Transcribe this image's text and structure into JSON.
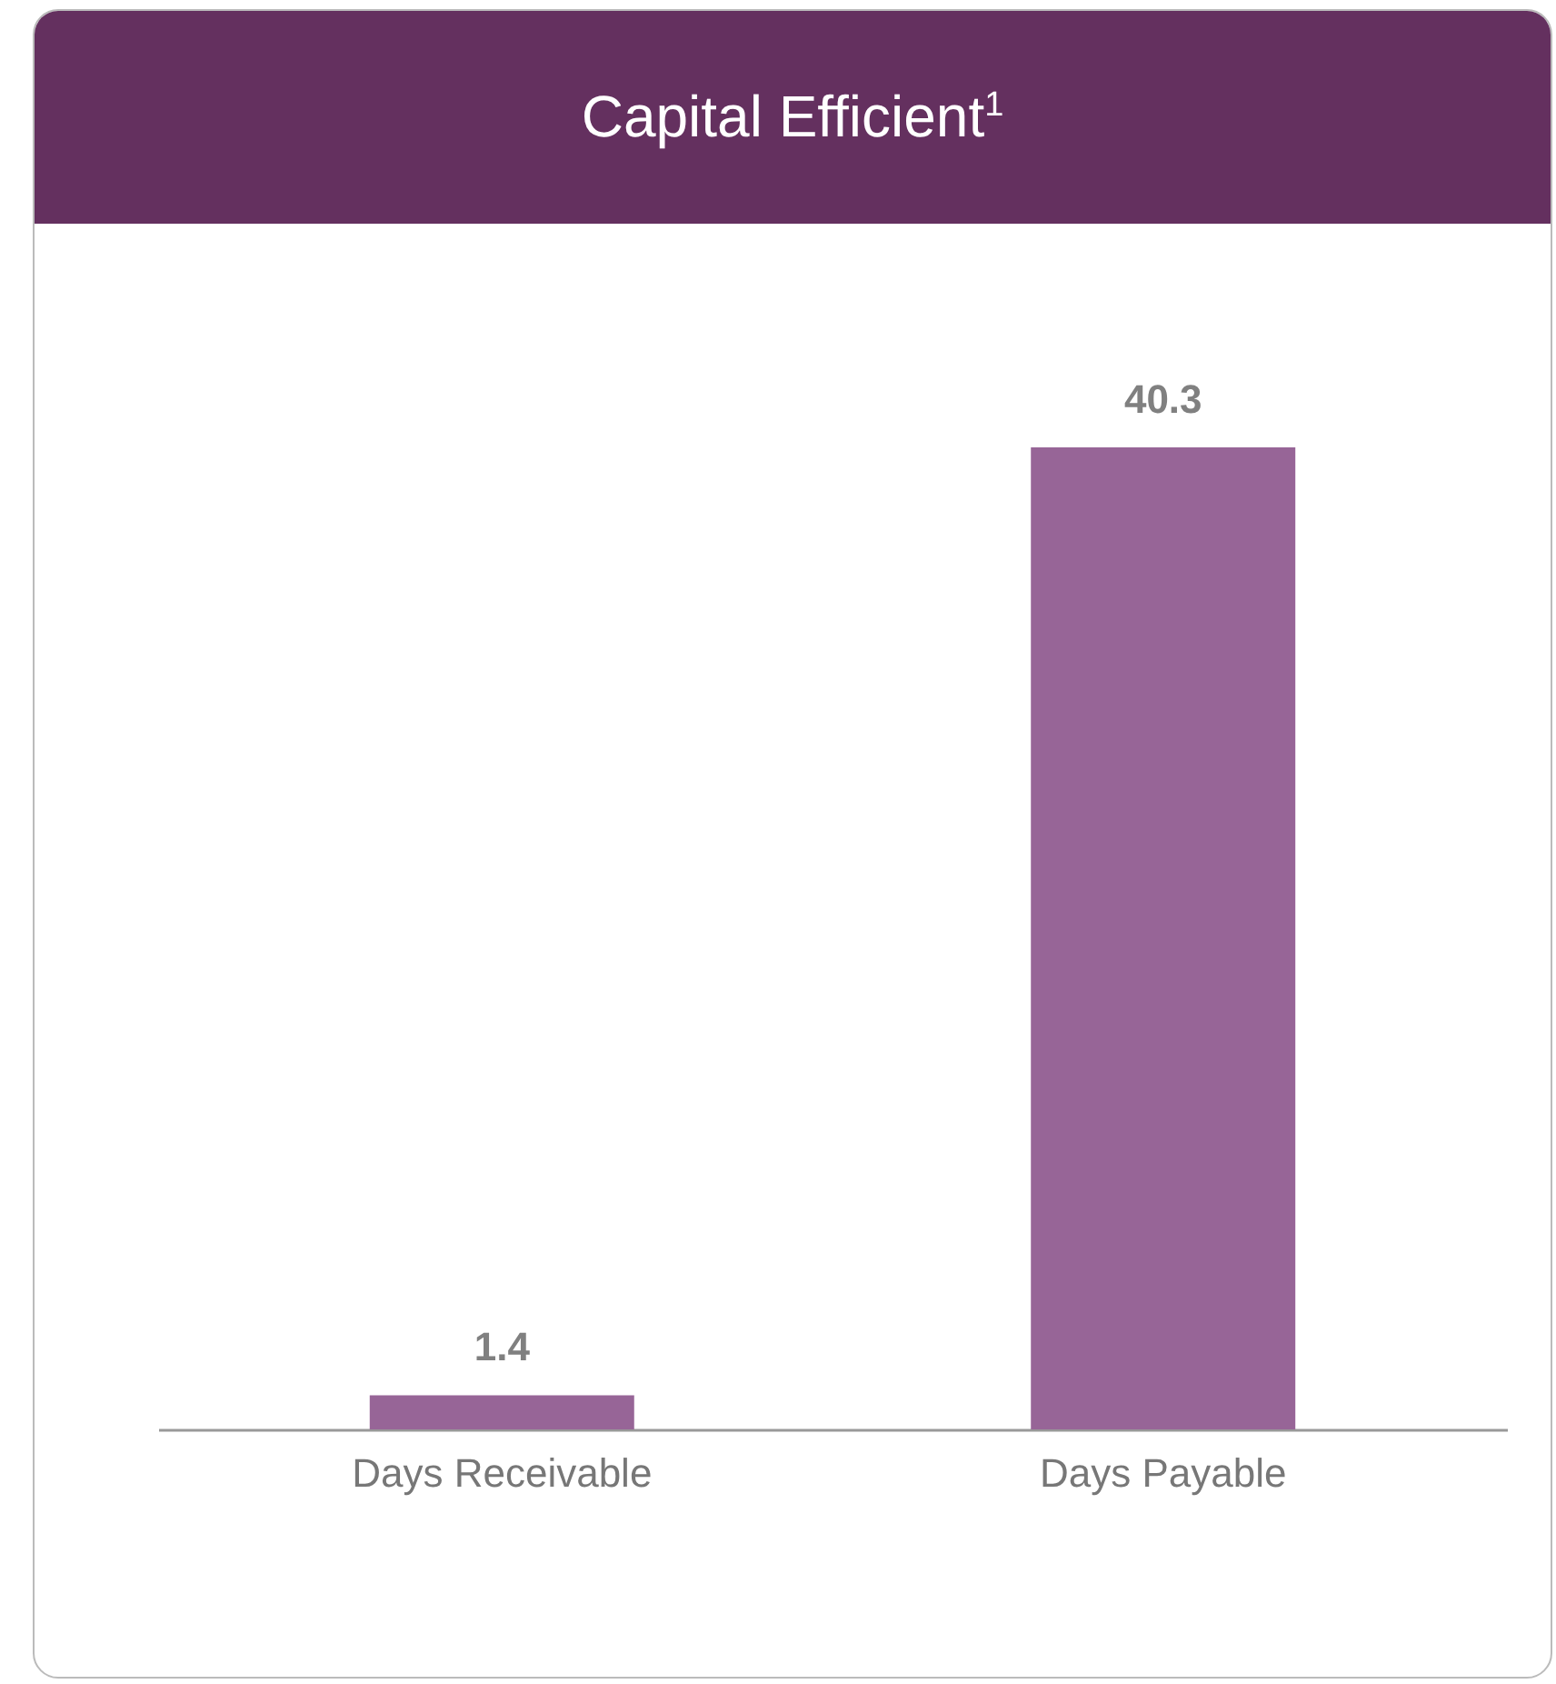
{
  "chart_data": {
    "type": "bar",
    "title": "Capital Efficient$^{1}$",
    "categories": [
      "Days Receivable",
      "Days Payable"
    ],
    "values": [
      1.4,
      40.3
    ],
    "color": "#976597",
    "data_labels": true
  }
}
